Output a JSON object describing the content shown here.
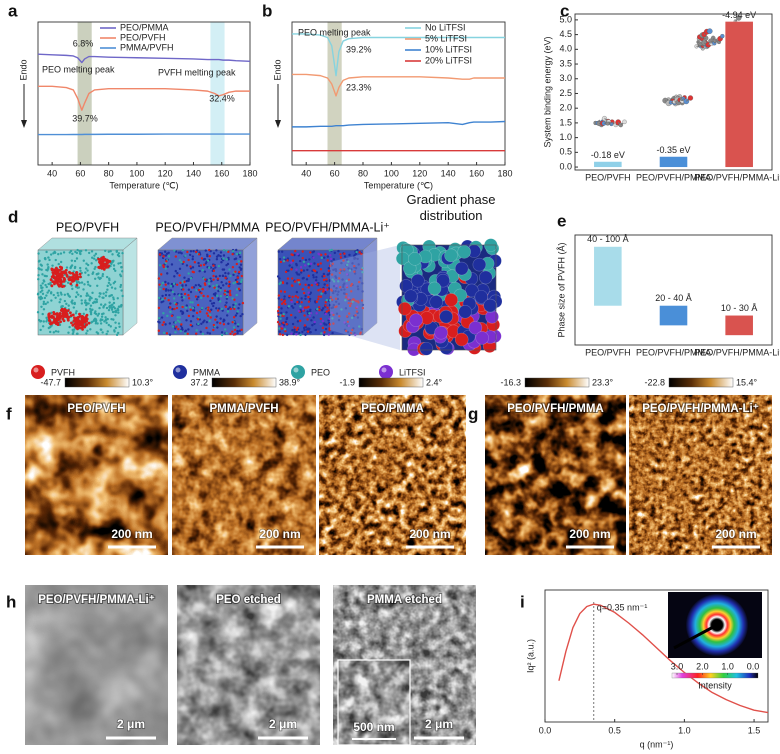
{
  "chart_data": [
    {
      "panel": "a",
      "type": "line",
      "x_label": "Temperature (℃)",
      "y_label": "Endo",
      "x": [
        30,
        40,
        50,
        55,
        58,
        61,
        63,
        66,
        70,
        80,
        100,
        120,
        140,
        150,
        155,
        158,
        161,
        165,
        170,
        180
      ],
      "xlim": [
        30,
        180
      ],
      "xticks": [
        40,
        60,
        80,
        100,
        120,
        140,
        160,
        180
      ],
      "ylim": [
        0,
        12
      ],
      "legend": "upper right",
      "highlight_bands": [
        {
          "xlim": [
            58,
            68
          ],
          "color": "#b9c0a8"
        },
        {
          "xlim": [
            152,
            162
          ],
          "color": "#c4e9f1"
        }
      ],
      "series": [
        {
          "name": "PEO/PMMA",
          "color": "#6f67c8",
          "values": [
            9.3,
            9.25,
            9.2,
            9.15,
            9.0,
            8.6,
            8.9,
            9.1,
            9.1,
            9.05,
            9.0,
            8.95,
            8.9,
            8.85,
            8.85,
            8.85,
            8.8,
            8.8,
            8.75,
            8.7
          ]
        },
        {
          "name": "PEO/PVFH",
          "color": "#f0876a",
          "values": [
            6.6,
            6.6,
            6.5,
            6.3,
            5.6,
            4.6,
            5.2,
            6.0,
            6.3,
            6.4,
            6.4,
            6.4,
            6.3,
            6.2,
            6.0,
            5.8,
            5.9,
            6.1,
            6.2,
            6.2
          ]
        },
        {
          "name": "PMMA/PVFH",
          "color": "#4f8fd6",
          "values": [
            2.55,
            2.55,
            2.55,
            2.56,
            2.56,
            2.56,
            2.57,
            2.57,
            2.57,
            2.58,
            2.58,
            2.6,
            2.6,
            2.6,
            2.6,
            2.6,
            2.6,
            2.6,
            2.6,
            2.6
          ]
        }
      ],
      "annotations": [
        "6.8%",
        "PEO melting peak",
        "39.7%",
        "PVFH melting peak",
        "32.4%"
      ]
    },
    {
      "panel": "b",
      "type": "line",
      "x_label": "Temperature (℃)",
      "y_label": "Endo",
      "x": [
        30,
        40,
        50,
        55,
        58,
        61,
        63,
        66,
        70,
        80,
        100,
        120,
        140,
        150,
        155,
        158,
        161,
        165,
        170,
        180
      ],
      "xlim": [
        30,
        180
      ],
      "xticks": [
        40,
        60,
        80,
        100,
        120,
        140,
        160,
        180
      ],
      "ylim": [
        0,
        12
      ],
      "legend": "upper right",
      "highlight_bands": [
        {
          "xlim": [
            55,
            65
          ],
          "color": "#c2c4ab"
        }
      ],
      "series": [
        {
          "name": "No LiTFSI",
          "color": "#86d3df",
          "values": [
            11.0,
            11.0,
            10.9,
            10.7,
            10.0,
            7.5,
            9.5,
            10.4,
            10.6,
            10.7,
            10.7,
            10.7,
            10.7,
            10.7,
            10.7,
            10.7,
            10.7,
            10.7,
            10.7,
            10.7
          ]
        },
        {
          "name": "5% LiTFSI",
          "color": "#f29a72",
          "values": [
            7.6,
            7.6,
            7.5,
            7.3,
            6.8,
            5.8,
            6.5,
            7.1,
            7.3,
            7.4,
            7.4,
            7.4,
            7.3,
            7.2,
            7.2,
            7.3,
            7.3,
            7.3,
            7.3,
            7.3
          ]
        },
        {
          "name": "10% LiTFSI",
          "color": "#3f83d1",
          "values": [
            3.2,
            3.2,
            3.25,
            3.25,
            3.25,
            3.3,
            3.3,
            3.3,
            3.35,
            3.4,
            3.45,
            3.5,
            3.55,
            3.4,
            3.55,
            3.6,
            3.6,
            3.6,
            3.6,
            3.65
          ]
        },
        {
          "name": "20% LiTFSI",
          "color": "#d83a3a",
          "values": [
            1.2,
            1.2,
            1.2,
            1.2,
            1.2,
            1.2,
            1.2,
            1.2,
            1.2,
            1.2,
            1.2,
            1.2,
            1.2,
            1.2,
            1.2,
            1.2,
            1.2,
            1.2,
            1.2,
            1.2
          ]
        }
      ],
      "annotations": [
        "PEO melting peak",
        "39.2%",
        "23.3%"
      ]
    },
    {
      "panel": "c",
      "type": "bar",
      "y_label": "System binding energy (eV)",
      "categories": [
        "PEO/PVFH",
        "PEO/PVFH/PMMA",
        "PEO/PVFH/PMMA-Li⁺"
      ],
      "values": [
        0.18,
        0.35,
        4.94
      ],
      "colors": [
        "#8fd0e8",
        "#4a8fd8",
        "#d9534f"
      ],
      "annotations": [
        "-0.18 eV",
        "-0.35 eV",
        "-4.94 eV"
      ],
      "ylim": [
        -0.1,
        5.2
      ],
      "yticks": [
        {
          "value": 0,
          "label": "0.0"
        },
        0.5,
        {
          "value": 1,
          "label": "1.0"
        },
        1.5,
        {
          "value": 2,
          "label": "2.0"
        },
        2.5,
        {
          "value": 3,
          "label": "3.0"
        },
        3.5,
        {
          "value": 4,
          "label": "4.0"
        },
        4.5,
        {
          "value": 5,
          "label": "5.0"
        }
      ]
    },
    {
      "panel": "e",
      "type": "range",
      "y_label": "Phase size of PVFH (Å)",
      "categories": [
        "PEO/PVFH",
        "PEO/PVFH/PMMA",
        "PEO/PVFH/PMMA-Li⁺"
      ],
      "low": [
        40,
        20,
        10
      ],
      "high": [
        100,
        40,
        30
      ],
      "colors": [
        "#a8dcea",
        "#4a8fd8",
        "#d9534f"
      ],
      "range_labels": [
        "40 - 100 Å",
        "20 - 40 Å",
        "10 - 30 Å"
      ],
      "ylim": [
        0,
        112
      ]
    },
    {
      "panel": "i",
      "type": "line",
      "x_label": "q (nm⁻¹)",
      "y_label": "Iq² (a.u.)",
      "x": [
        0.1,
        0.15,
        0.2,
        0.25,
        0.3,
        0.35,
        0.4,
        0.5,
        0.6,
        0.7,
        0.8,
        0.9,
        1.0,
        1.1,
        1.2,
        1.3,
        1.4,
        1.5,
        1.6
      ],
      "values": [
        0.35,
        0.6,
        0.8,
        0.92,
        0.98,
        1.0,
        0.99,
        0.93,
        0.84,
        0.74,
        0.63,
        0.52,
        0.42,
        0.33,
        0.25,
        0.19,
        0.14,
        0.1,
        0.08
      ],
      "color": "#e0504a",
      "xlim": [
        0,
        1.6
      ],
      "xticks": [
        {
          "value": 0,
          "label": "0.0"
        },
        0.5,
        {
          "value": 1,
          "label": "1.0"
        },
        1.5
      ],
      "ylim": [
        0,
        1.12
      ],
      "reference_x": 0.35,
      "annotations": [
        "q=0.35 nm⁻¹"
      ],
      "inset": {
        "colorbar_ticks": [
          {
            "value": 3,
            "label": "3.0"
          },
          {
            "value": 2,
            "label": "2.0"
          },
          {
            "value": 1,
            "label": "1.0"
          },
          {
            "value": 0,
            "label": "0.0"
          }
        ],
        "colorbar_label": "Intensity"
      }
    }
  ],
  "figure_panels": {
    "d": {
      "letter": "d",
      "structures": [
        "PEO/PVFH",
        "PEO/PVFH/PMMA",
        "PEO/PVFH/PMMA-Li⁺"
      ],
      "zoom_title": "Gradient phase distribution",
      "legend": [
        {
          "name": "PVFH",
          "color": "#d81e1e"
        },
        {
          "name": "PMMA",
          "color": "#1f2f9e"
        },
        {
          "name": "PEO",
          "color": "#2fa3a3"
        },
        {
          "name": "LiTFSI",
          "color": "#7b2fd0"
        }
      ]
    },
    "f": {
      "letter": "f",
      "images": [
        {
          "label": "PEO/PVFH",
          "colorbar_min": "-47.7",
          "colorbar_max": "10.3°",
          "scale_bar": "200 nm"
        },
        {
          "label": "PMMA/PVFH",
          "colorbar_min": "37.2",
          "colorbar_max": "38.9°",
          "scale_bar": "200 nm"
        },
        {
          "label": "PEO/PMMA",
          "colorbar_min": "-1.9",
          "colorbar_max": "2.4°",
          "scale_bar": "200 nm"
        }
      ]
    },
    "g": {
      "letter": "g",
      "images": [
        {
          "label": "PEO/PVFH/PMMA",
          "colorbar_min": "-16.3",
          "colorbar_max": "23.3°",
          "scale_bar": "200 nm"
        },
        {
          "label": "PEO/PVFH/PMMA-Li⁺",
          "colorbar_min": "-22.8",
          "colorbar_max": "15.4°",
          "scale_bar": "200 nm"
        }
      ]
    },
    "h": {
      "letter": "h",
      "images": [
        {
          "label": "PEO/PVFH/PMMA-Li⁺",
          "scale_bar": "2 μm"
        },
        {
          "label": "PEO etched",
          "scale_bar": "2 μm"
        },
        {
          "label": "PMMA etched",
          "scale_bar": "2 μm",
          "inset_scale_bar": "500 nm"
        }
      ]
    }
  }
}
